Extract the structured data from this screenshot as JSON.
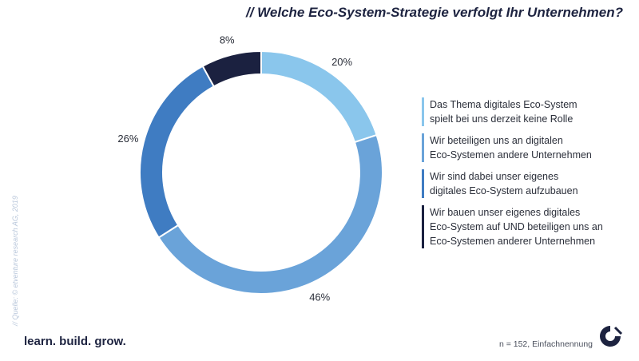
{
  "header": {
    "title": "// Welche Eco-System-Strategie verfolgt Ihr Unternehmen?"
  },
  "chart_data": {
    "type": "pie",
    "variant": "donut",
    "title": "// Welche Eco-System-Strategie verfolgt Ihr Unternehmen?",
    "slices": [
      {
        "label": "Das Thema digitales Eco-System spielt bei uns derzeit keine Rolle",
        "value": 20,
        "display": "20%",
        "color": "#8ac6ec"
      },
      {
        "label": "Wir beteiligen uns an digitalen Eco-Systemen andere Unternehmen",
        "value": 46,
        "display": "46%",
        "color": "#6aa3d9"
      },
      {
        "label": "Wir sind dabei unser eigenes digitales Eco-System aufzubauen",
        "value": 26,
        "display": "26%",
        "color": "#3f7cc2"
      },
      {
        "label": "Wir bauen unser eigenes digitales Eco-System auf UND beteiligen uns an Eco-Systemen anderer Unternehmen",
        "value": 8,
        "display": "8%",
        "color": "#1b2140"
      }
    ],
    "legend_position": "right",
    "start_angle_deg": 0,
    "direction": "clockwise"
  },
  "legend": {
    "items": [
      {
        "text": "Das Thema digitales Eco-System\nspielt bei uns derzeit keine Rolle",
        "color": "#8ac6ec"
      },
      {
        "text": "Wir beteiligen uns an digitalen\nEco-Systemen andere Unternehmen",
        "color": "#6aa3d9"
      },
      {
        "text": "Wir sind dabei unser eigenes\ndigitales Eco-System aufzubauen",
        "color": "#3f7cc2"
      },
      {
        "text": "Wir bauen unser eigenes digitales\nEco-System auf UND beteiligen uns an\nEco-Systemen anderer Unternehmen",
        "color": "#1b2140"
      }
    ]
  },
  "footer": {
    "source": "// Quelle: © etventure research AG, 2019",
    "tagline": "learn. build. grow.",
    "footnote": "n = 152, Einfachnennung"
  },
  "brand": {
    "logo_icon": "etventure-logo-icon",
    "color": "#1d2340"
  }
}
